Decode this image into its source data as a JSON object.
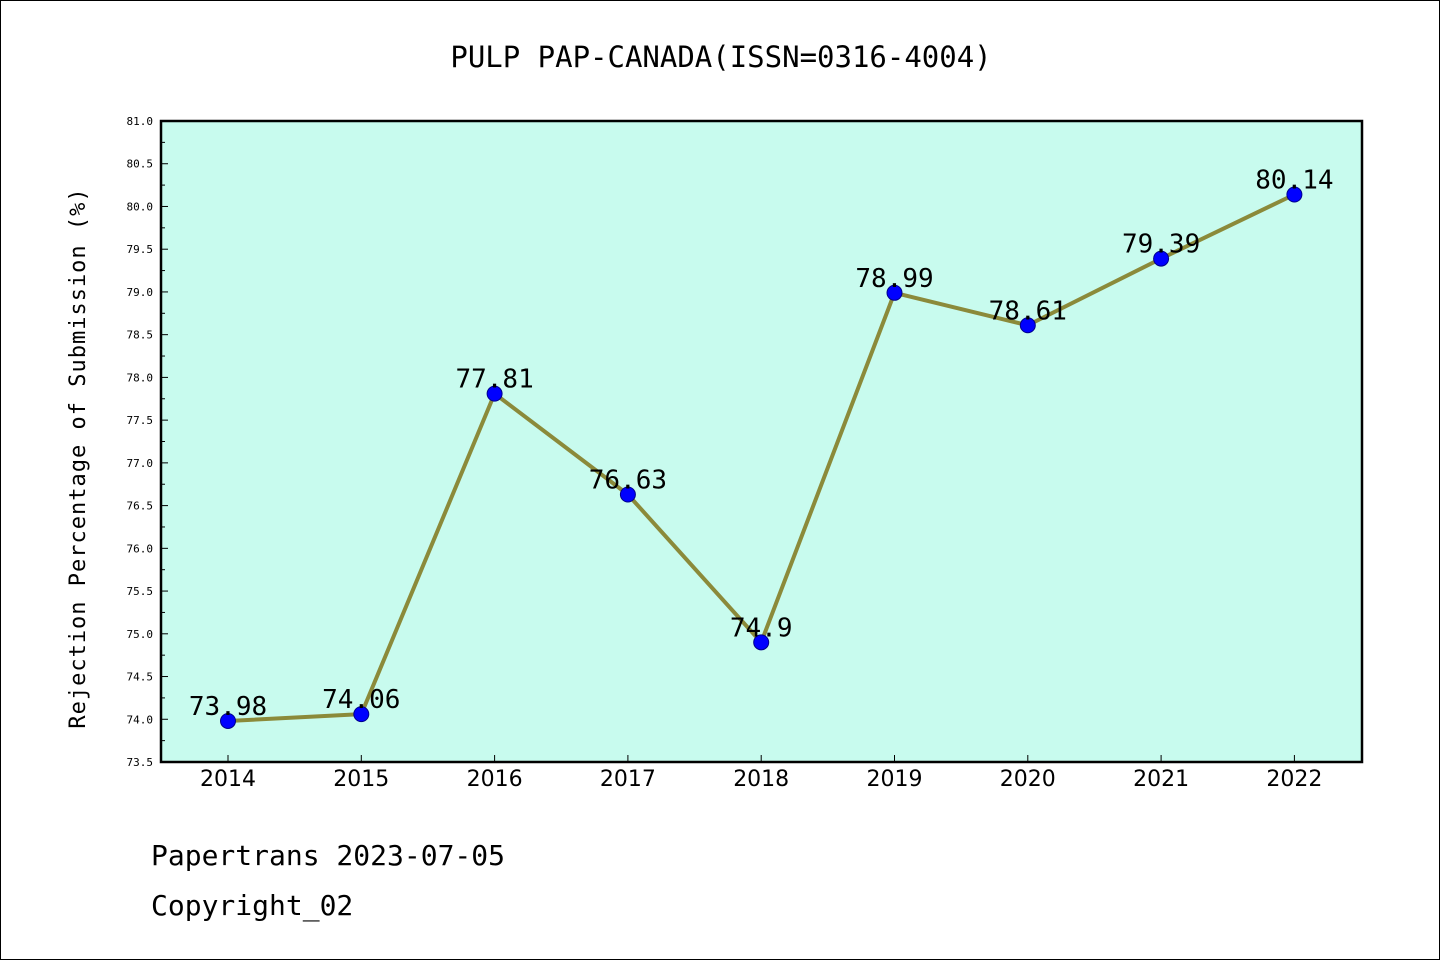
{
  "chart_data": {
    "type": "line",
    "title": "PULP PAP-CANADA(ISSN=0316-4004)",
    "xlabel": "",
    "ylabel": "Rejection Percentage of Submission (%)",
    "categories": [
      "2014",
      "2015",
      "2016",
      "2017",
      "2018",
      "2019",
      "2020",
      "2021",
      "2022"
    ],
    "series": [
      {
        "values": [
          73.98,
          74.06,
          77.81,
          76.63,
          74.9,
          78.99,
          78.61,
          79.39,
          80.14
        ],
        "data_labels": [
          "73.98",
          "74.06",
          "77.81",
          "76.63",
          "74.9",
          "78.99",
          "78.61",
          "79.39",
          "80.14"
        ]
      }
    ],
    "ylim": [
      73.5,
      81.0
    ],
    "yticks": [
      "73.5",
      "74.0",
      "74.5",
      "75.0",
      "75.5",
      "76.0",
      "76.5",
      "77.0",
      "77.5",
      "78.0",
      "78.5",
      "79.0",
      "79.5",
      "80.0",
      "80.5",
      "81.0"
    ],
    "grid": false,
    "legend": "none",
    "colors": {
      "plot_background": "#c8fbee",
      "line": "#8b8a3a",
      "marker": "#0000ff"
    }
  },
  "footer": {
    "line1": "Papertrans 2023-07-05",
    "line2": "Copyright_02"
  }
}
